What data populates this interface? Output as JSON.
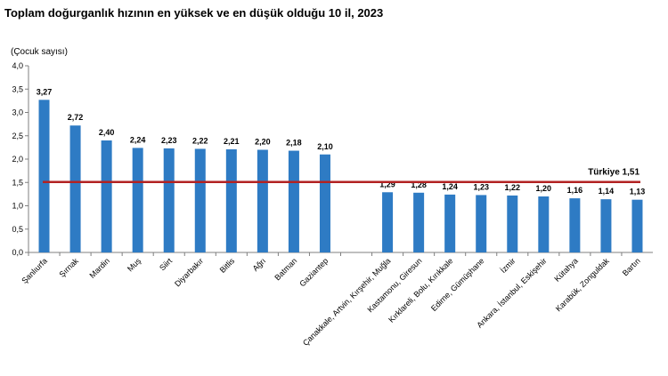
{
  "chart_data": {
    "type": "bar",
    "title": "Toplam doğurganlık hızının en yüksek ve en düşük olduğu 10 il, 2023",
    "ylabel": "(Çocuk sayısı)",
    "ylim": [
      0,
      4.0
    ],
    "yticks": [
      "0,0",
      "0,5",
      "1,0",
      "1,5",
      "2,0",
      "2,5",
      "3,0",
      "3,5",
      "4,0"
    ],
    "grid": false,
    "bar_color": "#2E7BC4",
    "reference_line": {
      "label": "Türkiye  1,51",
      "value": 1.51,
      "color": "#B22222"
    },
    "categories": [
      "Şanlıurfa",
      "Şırnak",
      "Mardin",
      "Muş",
      "Siirt",
      "Diyarbakır",
      "Bitlis",
      "Ağrı",
      "Batman",
      "Gaziantep",
      "",
      "Çanakkale, Artvin, Kırşehir, Muğla",
      "Kastamonu, Giresun",
      "Kırklareli, Bolu, Kırıkkale",
      "Edirne, Gümüşhane",
      "İzmir",
      "Ankara, İstanbul, Eskişehir",
      "Kütahya",
      "Karabük, Zonguldak",
      "Bartın"
    ],
    "values": [
      3.27,
      2.72,
      2.4,
      2.24,
      2.23,
      2.22,
      2.21,
      2.2,
      2.18,
      2.1,
      null,
      1.29,
      1.28,
      1.24,
      1.23,
      1.22,
      1.2,
      1.16,
      1.14,
      1.13
    ],
    "value_labels": [
      "3,27",
      "2,72",
      "2,40",
      "2,24",
      "2,23",
      "2,22",
      "2,21",
      "2,20",
      "2,18",
      "2,10",
      "",
      "1,29",
      "1,28",
      "1,24",
      "1,23",
      "1,22",
      "1,20",
      "1,16",
      "1,14",
      "1,13"
    ]
  }
}
